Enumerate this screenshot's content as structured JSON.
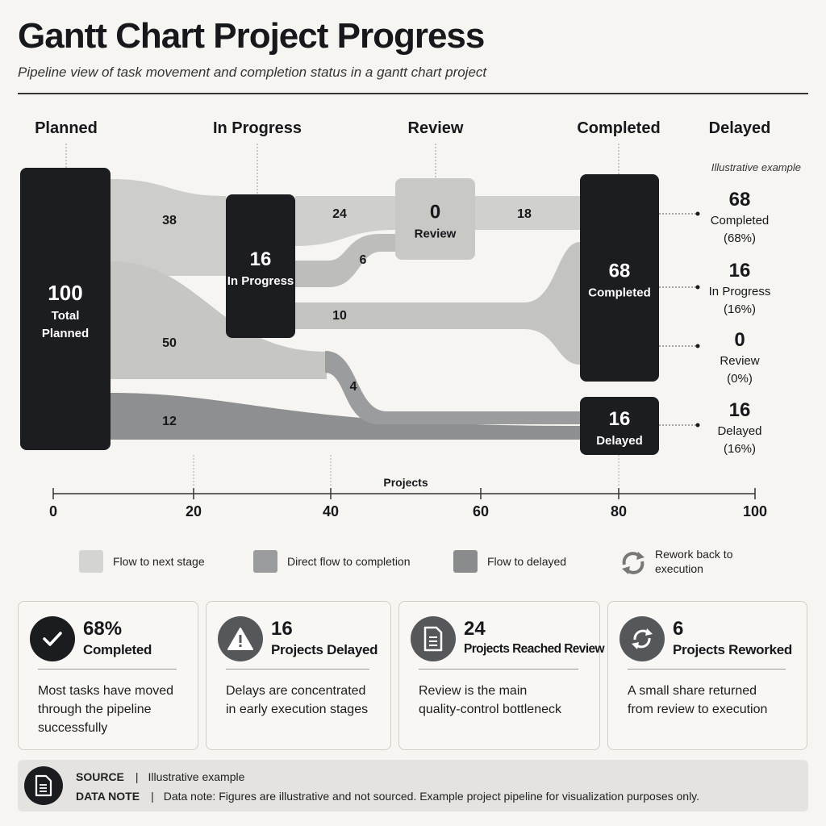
{
  "header": {
    "title": "Gantt Chart Project Progress",
    "subtitle": "Pipeline view of task movement and completion status in a gantt chart project"
  },
  "chart_data": {
    "type": "sankey",
    "stages": [
      "Planned",
      "In Progress",
      "Review",
      "Completed",
      "Delayed"
    ],
    "nodes": [
      {
        "id": "planned",
        "value": "100",
        "label": "Total\nPlanned"
      },
      {
        "id": "inprogress",
        "value": "16",
        "label": "In Progress"
      },
      {
        "id": "review",
        "value": "0",
        "label": "Review"
      },
      {
        "id": "completed",
        "value": "68",
        "label": "Completed"
      },
      {
        "id": "delayed",
        "value": "16",
        "label": "Delayed"
      }
    ],
    "flows": [
      {
        "from": "Planned",
        "to": "In Progress",
        "value": 38
      },
      {
        "from": "In Progress",
        "to": "Review",
        "value": 24
      },
      {
        "from": "Review",
        "to": "Completed",
        "value": 18
      },
      {
        "from": "Review",
        "to": "In Progress",
        "value": 6
      },
      {
        "from": "In Progress",
        "to": "Completed",
        "value": 10
      },
      {
        "from": "Planned",
        "to": "Completed",
        "value": 50
      },
      {
        "from": "In Progress",
        "to": "Delayed",
        "value": 4
      },
      {
        "from": "Planned",
        "to": "Delayed",
        "value": 12
      }
    ],
    "annotation": "Illustrative example",
    "summary": [
      {
        "value": "68",
        "label": "Completed",
        "pct": "(68%)"
      },
      {
        "value": "16",
        "label": "In Progress",
        "pct": "(16%)"
      },
      {
        "value": "0",
        "label": "Review",
        "pct": "(0%)"
      },
      {
        "value": "16",
        "label": "Delayed",
        "pct": "(16%)"
      }
    ],
    "xlabel": "Projects",
    "xticks": [
      0,
      20,
      40,
      60,
      80,
      100
    ],
    "xlim": [
      0,
      100
    ],
    "colors": {
      "node": "#1c1d21",
      "flow_next": "#c9c9c6",
      "flow_direct": "#bdbdba",
      "flow_delayed": "#8d8e8f",
      "rework": "#b0b0ad"
    }
  },
  "legend": {
    "items": [
      {
        "label": "Flow to next stage",
        "color": "#d2d2cf"
      },
      {
        "label": "Direct flow to completion",
        "color": "#9a9b9c"
      },
      {
        "label": "Flow to delayed",
        "color": "#8a8b8d"
      },
      {
        "label": "Rework back to execution",
        "icon": "rework-icon"
      }
    ]
  },
  "cards": [
    {
      "value": "68%",
      "label": "Completed",
      "desc": "Most tasks have moved through the pipeline successfully",
      "icon": "check-icon"
    },
    {
      "value": "16",
      "label": "Projects Delayed",
      "desc": "Delays are concentrated in early execution stages",
      "icon": "warning-icon"
    },
    {
      "value": "24",
      "label": "Projects Reached Review",
      "desc": "Review is the main quality-control bottleneck",
      "icon": "document-icon"
    },
    {
      "value": "6",
      "label": "Projects Reworked",
      "desc": "A small share returned from review to execution",
      "icon": "refresh-icon"
    }
  ],
  "footer": {
    "source_label": "SOURCE",
    "source_value": "Illustrative example",
    "note_label": "DATA NOTE",
    "note_value": "Data note: Figures are illustrative and not sourced. Example project pipeline for visualization purposes only."
  }
}
